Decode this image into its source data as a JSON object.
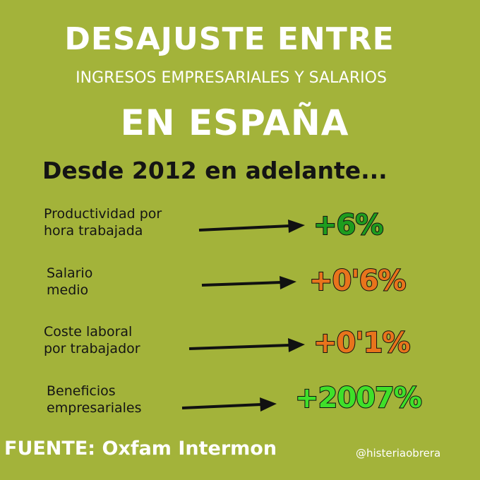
{
  "header": {
    "line1": "DESAJUSTE ENTRE",
    "line2": "INGRESOS EMPRESARIALES Y SALARIOS",
    "line3": "EN ESPAÑA",
    "subtitle": "Desde 2012 en adelante..."
  },
  "items": [
    {
      "label": "Productividad por\nhora trabajada",
      "value": "+6%",
      "color": "#1e9c1e"
    },
    {
      "label": "Salario\nmedio",
      "value": "+0'6%",
      "color": "#e8741c"
    },
    {
      "label": "Coste laboral\npor trabajador",
      "value": "+0'1%",
      "color": "#e8741c"
    },
    {
      "label": "Beneficios\nempresariales",
      "value": "+2007%",
      "color": "#3fe02a"
    }
  ],
  "footer": {
    "source": "FUENTE: Oxfam Intermon",
    "handle": "@histeriaobrera"
  }
}
